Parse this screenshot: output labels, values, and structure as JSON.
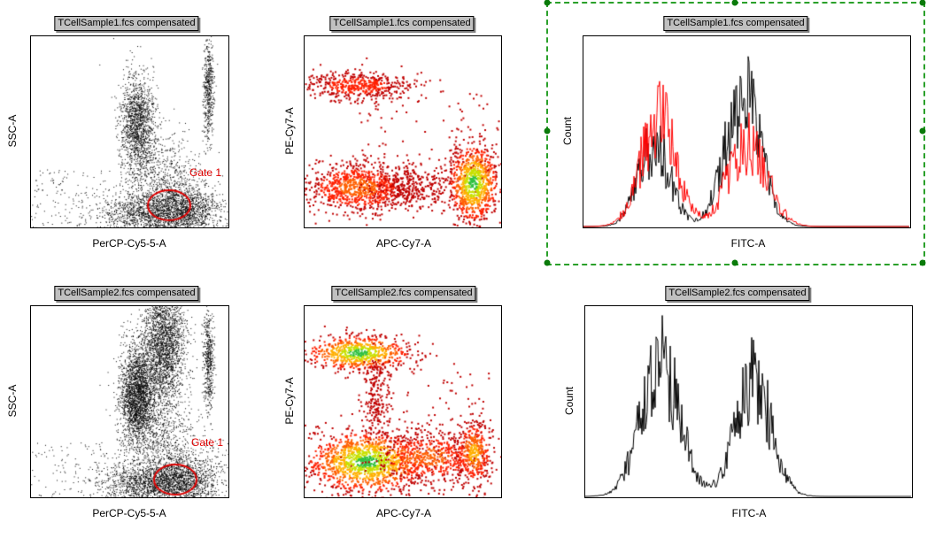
{
  "rows": [
    {
      "sample_title": "TCellSample1.fcs compensated",
      "dot_plot": {
        "x_label": "PerCP-Cy5-5-A",
        "y_label": "SSC-A",
        "gate_label": "Gate 1"
      },
      "density_plot": {
        "x_label": "APC-Cy7-A",
        "y_label": "PE-Cy7-A"
      },
      "histogram": {
        "x_label": "FITC-A",
        "y_label": "Count",
        "overlay": true,
        "selected": true
      }
    },
    {
      "sample_title": "TCellSample2.fcs compensated",
      "dot_plot": {
        "x_label": "PerCP-Cy5-5-A",
        "y_label": "SSC-A",
        "gate_label": "Gate 1"
      },
      "density_plot": {
        "x_label": "APC-Cy7-A",
        "y_label": "PE-Cy7-A"
      },
      "histogram": {
        "x_label": "FITC-A",
        "y_label": "Count",
        "overlay": false,
        "selected": false
      }
    }
  ],
  "colors": {
    "gate": "#e00000",
    "selection": "#2aa02a",
    "overlay_series": "#ff0000",
    "base_series": "#000000"
  }
}
